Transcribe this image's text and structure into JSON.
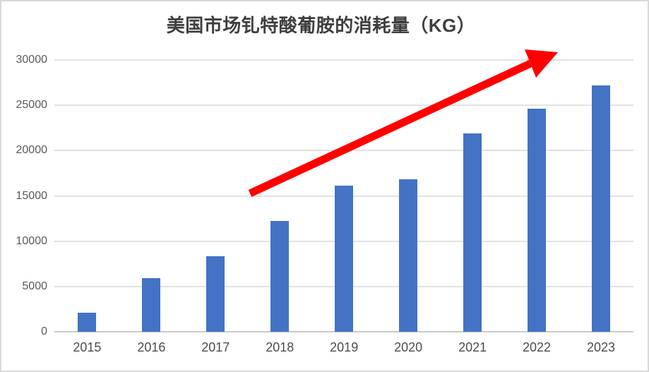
{
  "chart_data": {
    "type": "bar",
    "title": "美国市场钆特酸葡胺的消耗量（KG）",
    "categories": [
      "2015",
      "2016",
      "2017",
      "2018",
      "2019",
      "2020",
      "2021",
      "2022",
      "2023"
    ],
    "values": [
      2100,
      5900,
      8350,
      12250,
      16100,
      16800,
      21900,
      24600,
      27200
    ],
    "xlabel": "",
    "ylabel": "",
    "ylim": [
      0,
      30000
    ],
    "yticks": [
      0,
      5000,
      10000,
      15000,
      20000,
      25000,
      30000
    ],
    "grid": true,
    "legend": "none",
    "bar_color": "#4472c4",
    "annotation": {
      "type": "arrow",
      "meaning": "increasing-trend",
      "color": "#ff0000"
    }
  },
  "colors": {
    "frame_border": "#d9d9d9",
    "gridline": "#e2e2e2",
    "axis_line": "#c9c9c9",
    "title_text": "#3f3f3f",
    "tick_text": "#595959"
  }
}
